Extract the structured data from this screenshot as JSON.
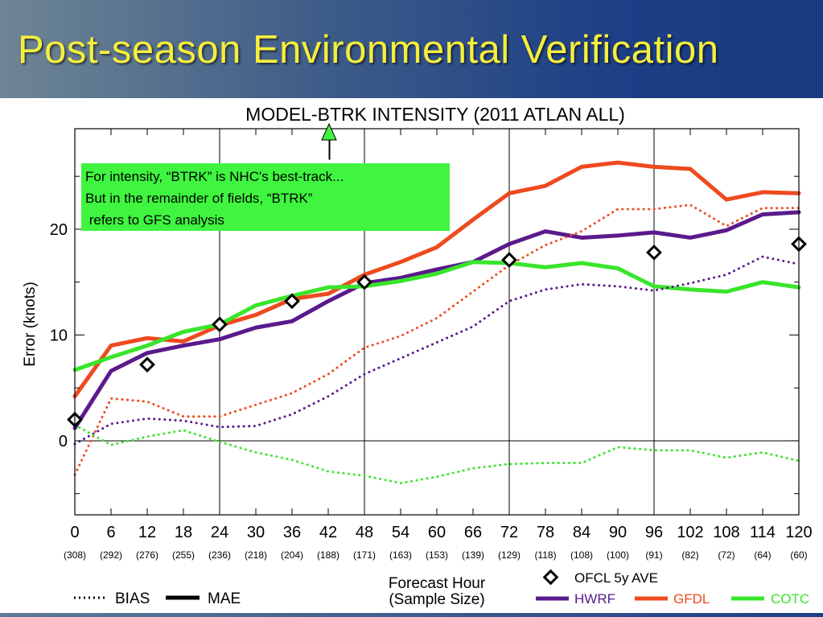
{
  "slide": {
    "title": "Post-season Environmental Verification"
  },
  "colors": {
    "header_gradient": [
      "#6e8594",
      "#1c3f86"
    ],
    "title": "#f6ee3c",
    "hwrf": "#5a1a8c",
    "gfdl": "#ee4a1e",
    "cotc": "#39e52a",
    "ofcl": "#000000",
    "annotation_bg": "#3ff53f",
    "arrow_fill": "#3ff53f"
  },
  "annotation": {
    "lines": [
      "For intensity, “BTRK” is NHC's best-track...",
      "But in the remainder of fields, “BTRK”",
      " refers to GFS analysis"
    ]
  },
  "chart_data": {
    "type": "line",
    "title": "MODEL-BTRK INTENSITY (2011 ATLAN ALL)",
    "xlabel": "Forecast Hour",
    "xlabel2": "(Sample Size)",
    "ylabel": "Error (knots)",
    "x": [
      0,
      6,
      12,
      18,
      24,
      30,
      36,
      42,
      48,
      54,
      60,
      66,
      72,
      78,
      84,
      90,
      96,
      102,
      108,
      114,
      120
    ],
    "sample_sizes": [
      "(308)",
      "(292)",
      "(276)",
      "(255)",
      "(236)",
      "(218)",
      "(204)",
      "(188)",
      "(171)",
      "(163)",
      "(153)",
      "(139)",
      "(129)",
      "(118)",
      "(108)",
      "(100)",
      "(91)",
      "(82)",
      "(72)",
      "(64)",
      "(60)"
    ],
    "xlim": [
      0,
      120
    ],
    "ylim": [
      -7,
      29.5
    ],
    "yticks": [
      0,
      10,
      20
    ],
    "vlines": [
      24,
      48,
      72,
      96
    ],
    "grid": false,
    "series": [
      {
        "name": "HWRF",
        "style": "mae",
        "color": "#5a1a8c",
        "values": [
          1.2,
          6.6,
          8.3,
          9.0,
          9.6,
          10.7,
          11.3,
          13.2,
          14.9,
          15.4,
          16.2,
          16.9,
          18.6,
          19.8,
          19.2,
          19.4,
          19.7,
          19.2,
          19.9,
          21.4,
          21.6
        ]
      },
      {
        "name": "GFDL",
        "style": "mae",
        "color": "#ee4a1e",
        "values": [
          4.2,
          9.0,
          9.7,
          9.4,
          10.9,
          11.9,
          13.4,
          13.9,
          15.7,
          16.9,
          18.3,
          20.9,
          23.4,
          24.1,
          25.9,
          26.3,
          25.9,
          25.7,
          22.8,
          23.5,
          23.4
        ]
      },
      {
        "name": "COTC",
        "style": "mae",
        "color": "#39e52a",
        "values": [
          6.7,
          7.9,
          9.0,
          10.3,
          11.0,
          12.8,
          13.7,
          14.5,
          14.6,
          15.1,
          15.8,
          16.9,
          16.8,
          16.4,
          16.8,
          16.3,
          14.6,
          14.3,
          14.1,
          15.0,
          14.5
        ]
      },
      {
        "name": "HWRF",
        "style": "bias",
        "color": "#5a1a8c",
        "values": [
          -0.3,
          1.6,
          2.1,
          1.9,
          1.3,
          1.4,
          2.5,
          4.2,
          6.3,
          7.8,
          9.3,
          10.8,
          13.2,
          14.3,
          14.8,
          14.6,
          14.2,
          14.9,
          15.7,
          17.4,
          16.7
        ]
      },
      {
        "name": "GFDL",
        "style": "bias",
        "color": "#ee4a1e",
        "values": [
          -3.2,
          4.0,
          3.7,
          2.3,
          2.3,
          3.4,
          4.5,
          6.3,
          8.8,
          9.9,
          11.6,
          14.1,
          16.6,
          18.5,
          19.8,
          21.9,
          21.9,
          22.3,
          20.3,
          22.0,
          22.0
        ]
      },
      {
        "name": "COTC",
        "style": "bias",
        "color": "#39e52a",
        "values": [
          1.5,
          -0.4,
          0.4,
          1.0,
          -0.1,
          -1.1,
          -1.8,
          -2.9,
          -3.3,
          -4.0,
          -3.4,
          -2.6,
          -2.2,
          -2.1,
          -2.1,
          -0.6,
          -0.9,
          -0.9,
          -1.6,
          -1.1,
          -1.9
        ]
      }
    ],
    "ofcl": {
      "name": "OFCL 5y AVE",
      "x": [
        0,
        12,
        24,
        36,
        48,
        72,
        96,
        120
      ],
      "values": [
        2.0,
        7.2,
        11.0,
        13.2,
        15.0,
        17.1,
        17.8,
        18.6
      ]
    },
    "legend": {
      "placement": "bottom",
      "bias_label": "BIAS",
      "mae_label": "MAE",
      "ofcl_label": "OFCL 5y AVE",
      "model_labels": [
        "HWRF",
        "GFDL",
        "COTC"
      ]
    }
  }
}
